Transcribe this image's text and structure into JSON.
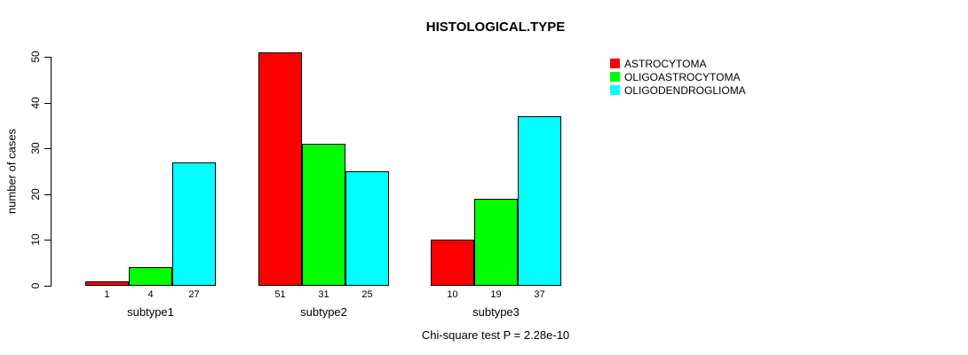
{
  "chart_data": {
    "type": "bar",
    "title": "HISTOLOGICAL.TYPE",
    "ylabel": "number of cases",
    "xlabel": "",
    "ylim": [
      0,
      50
    ],
    "yticks": [
      0,
      10,
      20,
      30,
      40,
      50
    ],
    "categories": [
      "subtype1",
      "subtype2",
      "subtype3"
    ],
    "series": [
      {
        "name": "ASTROCYTOMA",
        "color": "#FF0000",
        "values": [
          1,
          51,
          10
        ]
      },
      {
        "name": "OLIGOASTROCYTOMA",
        "color": "#00FF00",
        "values": [
          4,
          31,
          19
        ]
      },
      {
        "name": "OLIGODENDROGLIOMA",
        "color": "#00FFFF",
        "values": [
          27,
          25,
          37
        ]
      }
    ],
    "bar_value_labels_shown": true,
    "annotation": "Chi-square test P = 2.28e-10",
    "legend_position": "top-right",
    "grid": false,
    "background": "#FFFFFF",
    "axis_color": "#000000"
  }
}
